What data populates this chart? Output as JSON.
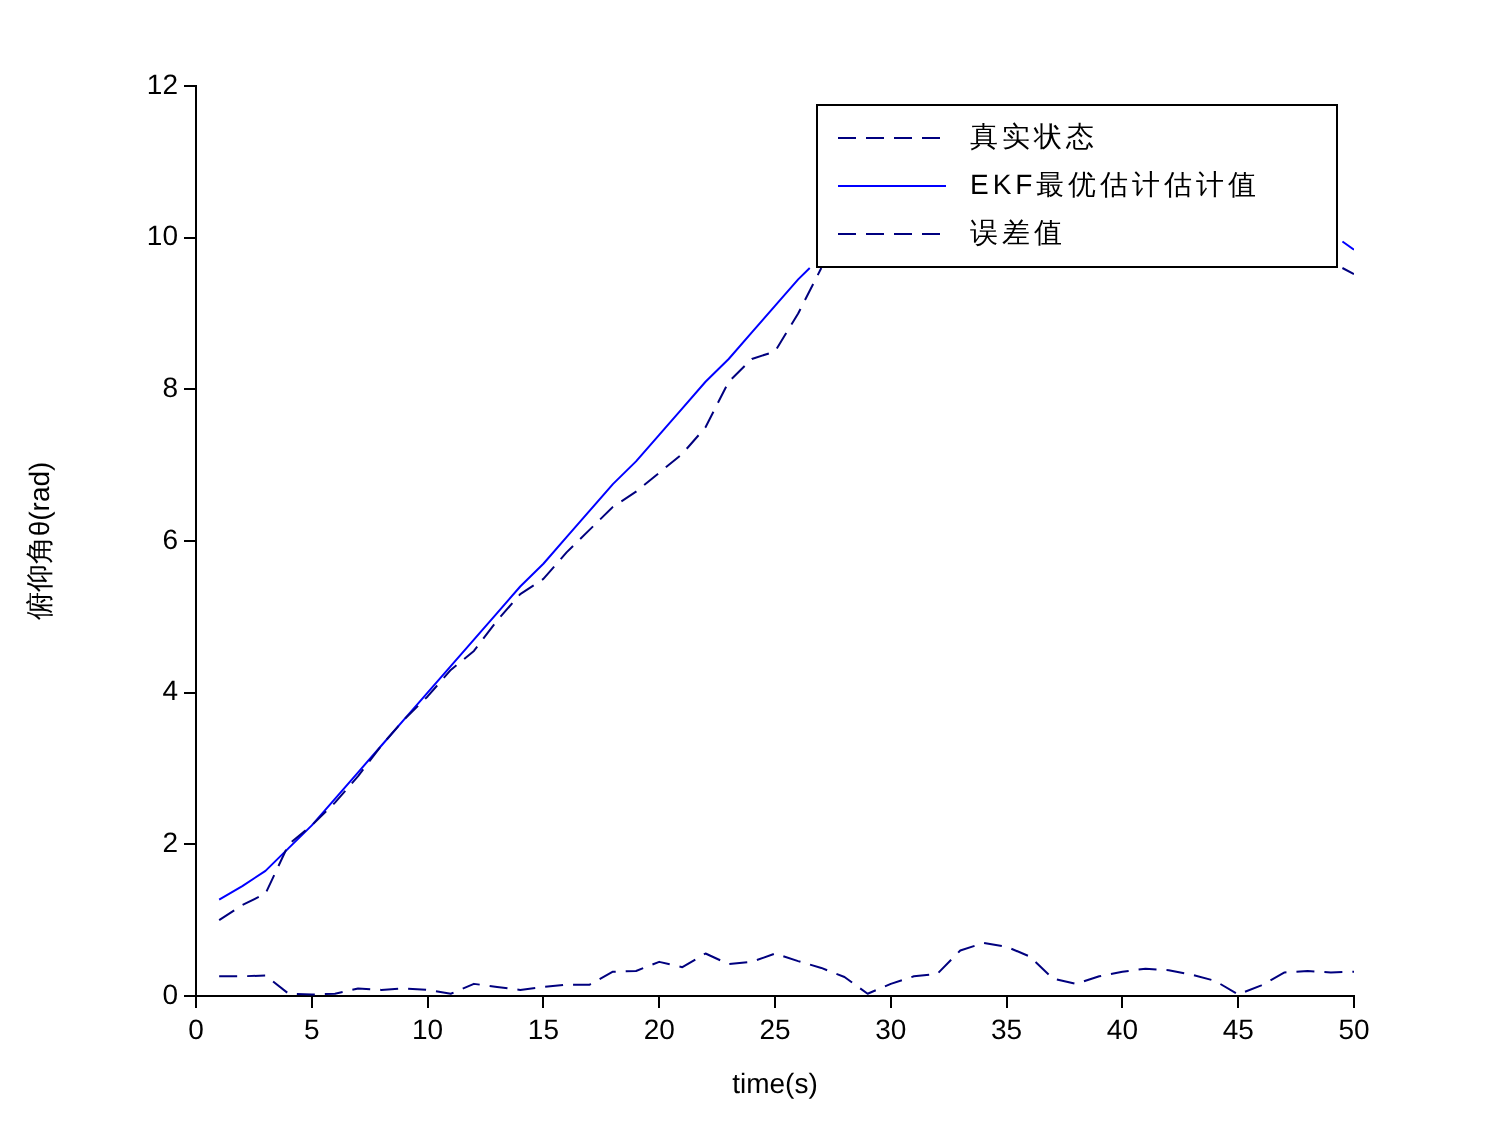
{
  "chart_data": {
    "type": "line",
    "xlabel": "time(s)",
    "ylabel": "俯仰角θ(rad)",
    "xlim": [
      0,
      50
    ],
    "xticks": [
      0,
      5,
      10,
      15,
      20,
      25,
      30,
      35,
      40,
      45,
      50
    ],
    "ylim": [
      0,
      12
    ],
    "yticks": [
      0,
      2,
      4,
      6,
      8,
      10,
      12
    ],
    "grid": false,
    "legend": "top right",
    "marker": "none",
    "series": [
      {
        "name": "真实状态",
        "color": "#00007f",
        "line_style": "dashed",
        "x": [
          1,
          2,
          3,
          4,
          5,
          6,
          7,
          8,
          9,
          10,
          11,
          12,
          13,
          14,
          15,
          16,
          17,
          18,
          19,
          20,
          21,
          22,
          23,
          24,
          25,
          26,
          27,
          28,
          49.5,
          50
        ],
        "values": [
          1.0,
          1.2,
          1.35,
          2.0,
          2.25,
          2.55,
          2.9,
          3.3,
          3.65,
          3.95,
          4.3,
          4.55,
          4.95,
          5.3,
          5.5,
          5.85,
          6.15,
          6.45,
          6.65,
          6.9,
          7.15,
          7.5,
          8.1,
          8.4,
          8.5,
          9.0,
          9.6,
          null,
          9.6,
          9.52
        ]
      },
      {
        "name": "EKF最优估计估计值",
        "color": "#0000ff",
        "line_style": "solid",
        "x": [
          1,
          2,
          3,
          4,
          5,
          6,
          7,
          8,
          9,
          10,
          11,
          12,
          13,
          14,
          15,
          16,
          17,
          18,
          19,
          20,
          21,
          22,
          23,
          24,
          25,
          26,
          26.5,
          28,
          49.5,
          50
        ],
        "values": [
          1.27,
          1.45,
          1.65,
          1.95,
          2.25,
          2.6,
          2.95,
          3.3,
          3.65,
          4.0,
          4.35,
          4.7,
          5.05,
          5.4,
          5.7,
          6.05,
          6.4,
          6.75,
          7.05,
          7.4,
          7.75,
          8.1,
          8.4,
          8.75,
          9.1,
          9.45,
          9.6,
          null,
          9.95,
          9.84
        ]
      },
      {
        "name": "误差值",
        "color": "#00007f",
        "line_style": "dashed",
        "x": [
          1,
          2,
          3,
          4,
          5,
          6,
          7,
          8,
          9,
          10,
          11,
          12,
          13,
          14,
          15,
          16,
          17,
          18,
          19,
          20,
          21,
          22,
          23,
          24,
          25,
          26,
          27,
          28,
          29,
          30,
          31,
          32,
          33,
          34,
          35,
          36,
          37,
          38,
          39,
          40,
          41,
          42,
          43,
          44,
          45,
          46,
          47,
          48,
          49,
          50
        ],
        "values": [
          0.26,
          0.26,
          0.27,
          0.03,
          0.02,
          0.03,
          0.1,
          0.08,
          0.1,
          0.08,
          0.03,
          0.16,
          0.12,
          0.08,
          0.12,
          0.15,
          0.15,
          0.32,
          0.33,
          0.45,
          0.38,
          0.56,
          0.42,
          0.45,
          0.56,
          0.46,
          0.37,
          0.25,
          0.03,
          0.16,
          0.26,
          0.29,
          0.6,
          0.7,
          0.65,
          0.52,
          0.23,
          0.16,
          0.26,
          0.32,
          0.36,
          0.34,
          0.28,
          0.2,
          0.02,
          0.14,
          0.31,
          0.33,
          0.31,
          0.32
        ]
      }
    ]
  }
}
